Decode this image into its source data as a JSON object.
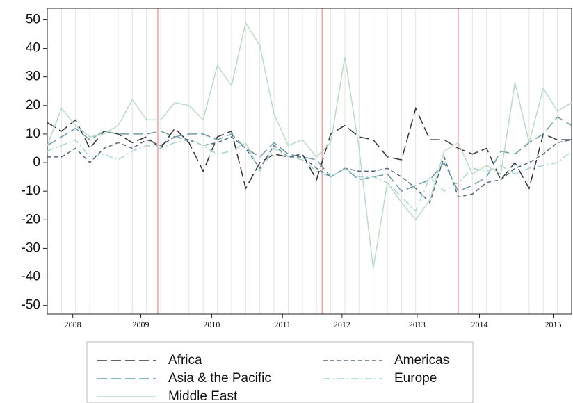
{
  "chart_data": {
    "type": "line",
    "x": [
      0,
      1,
      2,
      3,
      4,
      5,
      6,
      7,
      8,
      9,
      10,
      11,
      12,
      13,
      14,
      15,
      16,
      17,
      18,
      19,
      20,
      21,
      22,
      23,
      24,
      25,
      26,
      27,
      28,
      29,
      30,
      31,
      32,
      33,
      34,
      35,
      36,
      37
    ],
    "xlim": [
      0,
      37
    ],
    "xticks": [
      {
        "value": 1.8,
        "label": "2008"
      },
      {
        "value": 6.6,
        "label": "2009"
      },
      {
        "value": 11.6,
        "label": "2010"
      },
      {
        "value": 16.6,
        "label": "2011"
      },
      {
        "value": 20.8,
        "label": "2012"
      },
      {
        "value": 26.1,
        "label": "2013"
      },
      {
        "value": 30.5,
        "label": "2014"
      },
      {
        "value": 35.7,
        "label": "2015"
      }
    ],
    "ylim": [
      -53,
      54
    ],
    "yticks": [
      -50,
      -40,
      -30,
      -20,
      -10,
      0,
      10,
      20,
      30,
      40,
      50
    ],
    "vertical_grid": true,
    "reference_lines": {
      "color": "#f0a0a0",
      "x": [
        7.8,
        19.4,
        29
      ]
    },
    "series": [
      {
        "name": "Africa",
        "color": "#333333",
        "style": "longdash",
        "values": [
          14,
          11,
          15,
          5,
          11,
          10,
          7,
          9,
          5,
          12,
          7,
          -3,
          9,
          11,
          -9,
          0,
          3,
          2,
          3,
          -6,
          10,
          13,
          9,
          8,
          2,
          1,
          19,
          8,
          8,
          5,
          3,
          5,
          -6,
          0,
          -9,
          10,
          8,
          8
        ]
      },
      {
        "name": "Americas",
        "color": "#4f6a80",
        "style": "dash",
        "values": [
          2,
          2,
          5,
          0,
          5,
          7,
          5,
          8,
          6,
          9,
          8,
          6,
          7,
          9,
          5,
          -2,
          6,
          2,
          2,
          -2,
          -5,
          -2,
          -3,
          -3,
          -2,
          -5,
          -9,
          -14,
          2,
          -12,
          -11,
          -7,
          -6,
          -2,
          0,
          3,
          7,
          8
        ]
      },
      {
        "name": "Asia & the Pacific",
        "color": "#6b9ba6",
        "style": "longdash",
        "values": [
          6,
          9,
          12,
          8,
          11,
          10,
          10,
          10,
          11,
          9,
          10,
          10,
          8,
          10,
          5,
          2,
          7,
          3,
          2,
          1,
          -5,
          -2,
          -6,
          -5,
          -4,
          -10,
          -8,
          -6,
          0,
          -10,
          -8,
          -5,
          4,
          3,
          7,
          10,
          16,
          13
        ]
      },
      {
        "name": "Europe",
        "color": "#a6d6cf",
        "style": "dashdot",
        "values": [
          4,
          6,
          8,
          2,
          3,
          1,
          4,
          6,
          5,
          7,
          8,
          6,
          3,
          4,
          7,
          -3,
          5,
          2,
          1,
          -3,
          -5,
          -2,
          -5,
          -5,
          -7,
          -12,
          -17,
          -5,
          -10,
          -7,
          -2,
          -3,
          -1,
          -4,
          -2,
          -1,
          0,
          4
        ]
      },
      {
        "name": "Middle East",
        "color": "#b9dcc6",
        "style": "solid",
        "values": [
          6,
          19,
          13,
          9,
          10,
          13,
          22,
          15,
          15,
          21,
          20,
          15,
          34,
          27,
          49,
          41,
          17,
          6,
          8,
          2,
          7,
          37,
          5,
          -37,
          -7,
          -14,
          -20,
          -13,
          4,
          7,
          -4,
          -1,
          -4,
          28,
          7,
          26,
          18,
          21
        ]
      }
    ]
  }
}
